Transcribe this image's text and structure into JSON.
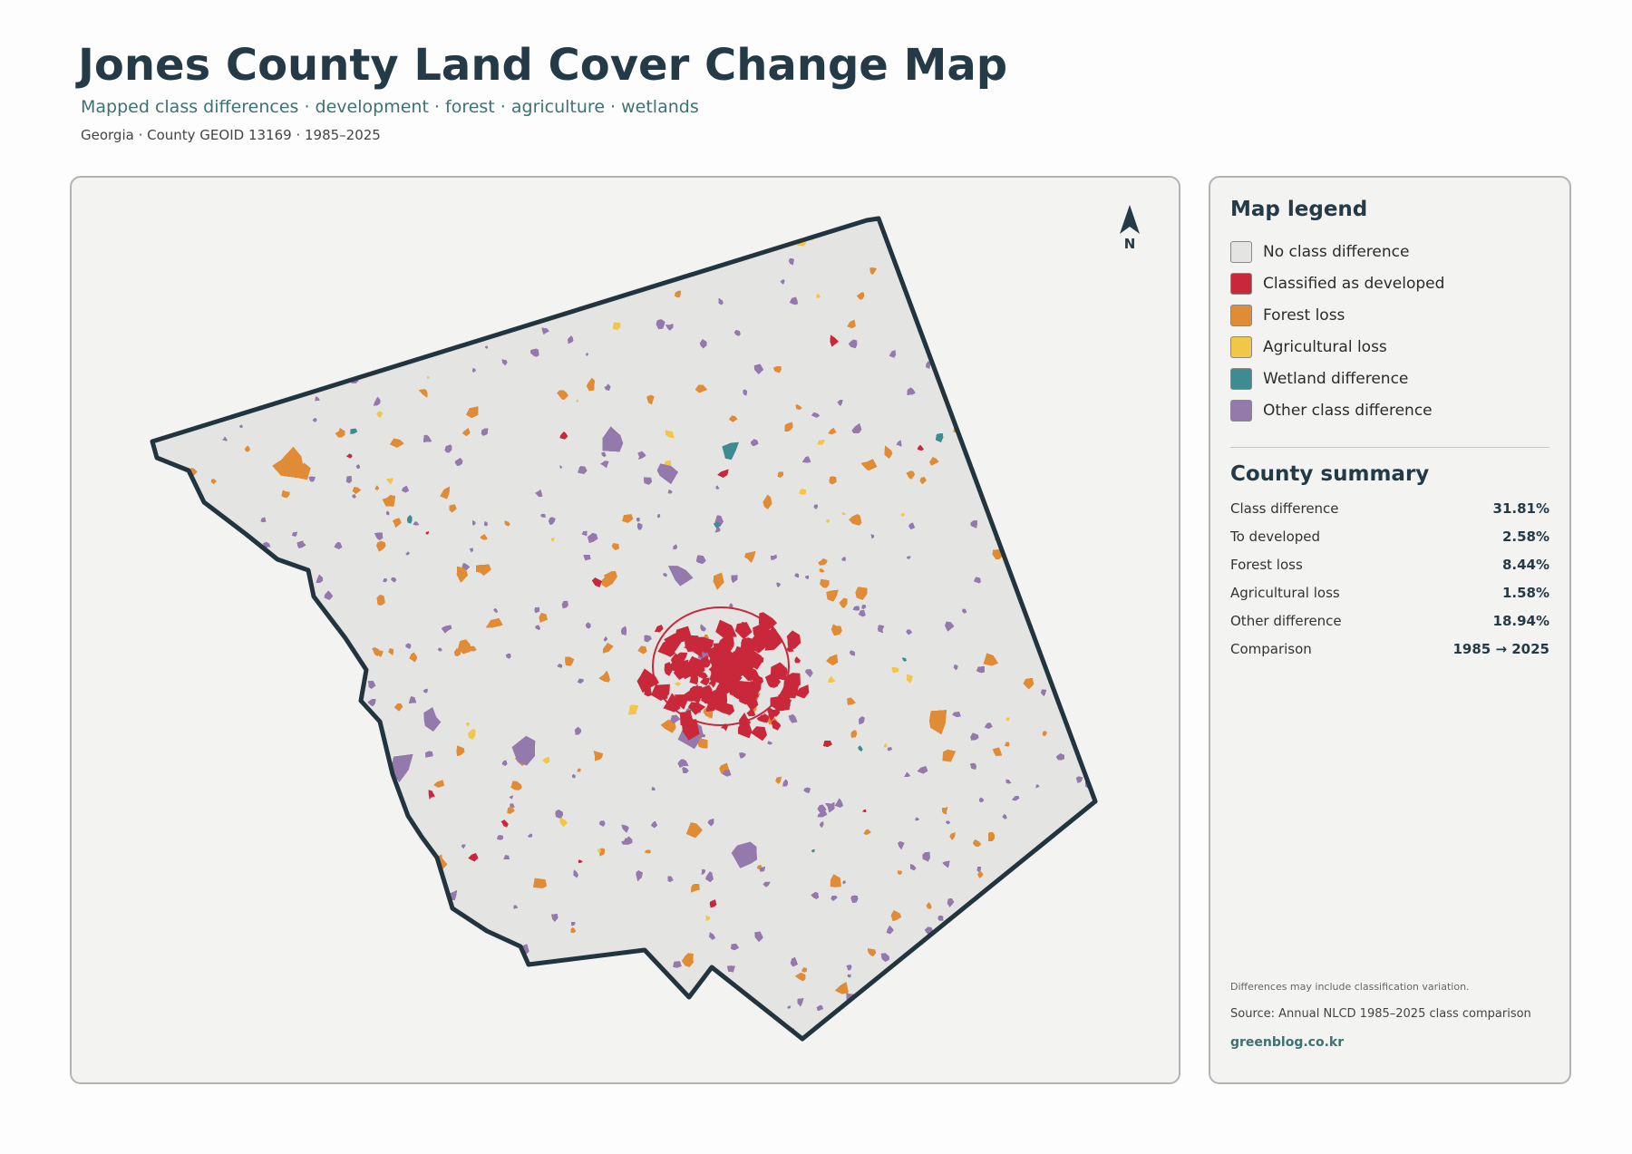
{
  "header": {
    "title": "Jones County Land Cover Change Map",
    "subtitle": "Mapped class differences · development · forest · agriculture · wetlands",
    "meta": "Georgia · County GEOID 13169 · 1985–2025"
  },
  "map": {
    "north_label": "N"
  },
  "legend": {
    "title": "Map legend",
    "items": [
      {
        "label": "No class difference",
        "color": "#e4e4e2"
      },
      {
        "label": "Classified as developed",
        "color": "#c9283a"
      },
      {
        "label": "Forest loss",
        "color": "#e08c36"
      },
      {
        "label": "Agricultural loss",
        "color": "#f2c649"
      },
      {
        "label": "Wetland difference",
        "color": "#3f8b92"
      },
      {
        "label": "Other class difference",
        "color": "#9479ad"
      }
    ]
  },
  "summary": {
    "title": "County summary",
    "rows": [
      [
        "Class difference",
        "31.81%"
      ],
      [
        "To developed",
        "2.58%"
      ],
      [
        "Forest loss",
        "8.44%"
      ],
      [
        "Agricultural loss",
        "1.58%"
      ],
      [
        "Other difference",
        "18.94%"
      ],
      [
        "Comparison",
        "1985 → 2025"
      ]
    ]
  },
  "notes": {
    "caveat": "Differences may include classification variation.",
    "source": "Source: Annual NLCD 1985–2025 class comparison",
    "site": "greenblog.co.kr"
  }
}
